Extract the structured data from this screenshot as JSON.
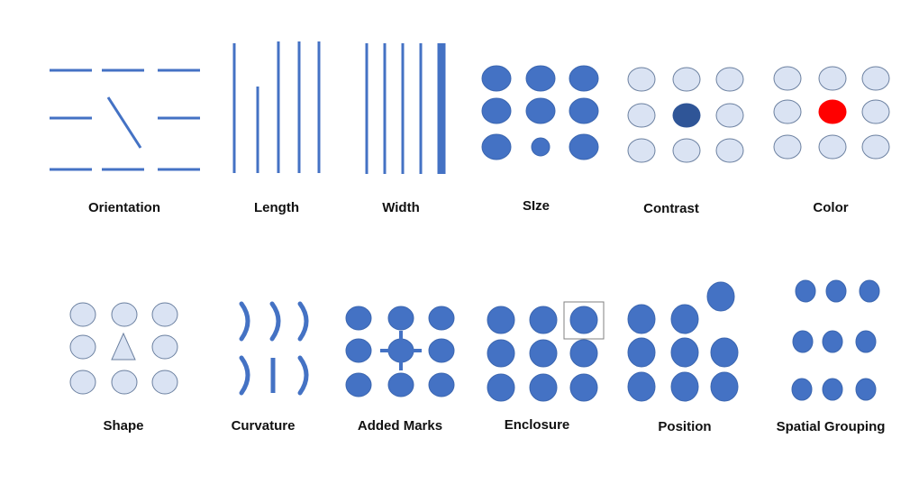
{
  "colors": {
    "mark": "#4472C4",
    "mark_stroke": "#3B66B0",
    "light_fill": "#DAE3F3",
    "light_stroke": "#6A7F9F",
    "dark_fill": "#2F5597",
    "highlight": "#FF0000",
    "enclosure_box": "#808080"
  },
  "panels": [
    {
      "id": "orientation",
      "label": "Orientation"
    },
    {
      "id": "length",
      "label": "Length"
    },
    {
      "id": "width",
      "label": "Width"
    },
    {
      "id": "size",
      "label": "SIze"
    },
    {
      "id": "contrast",
      "label": "Contrast"
    },
    {
      "id": "color",
      "label": "Color"
    },
    {
      "id": "shape",
      "label": "Shape"
    },
    {
      "id": "curvature",
      "label": "Curvature"
    },
    {
      "id": "added-marks",
      "label": "Added Marks"
    },
    {
      "id": "enclosure",
      "label": "Enclosure"
    },
    {
      "id": "position",
      "label": "Position"
    },
    {
      "id": "spatial-grouping",
      "label": "Spatial Grouping"
    }
  ]
}
